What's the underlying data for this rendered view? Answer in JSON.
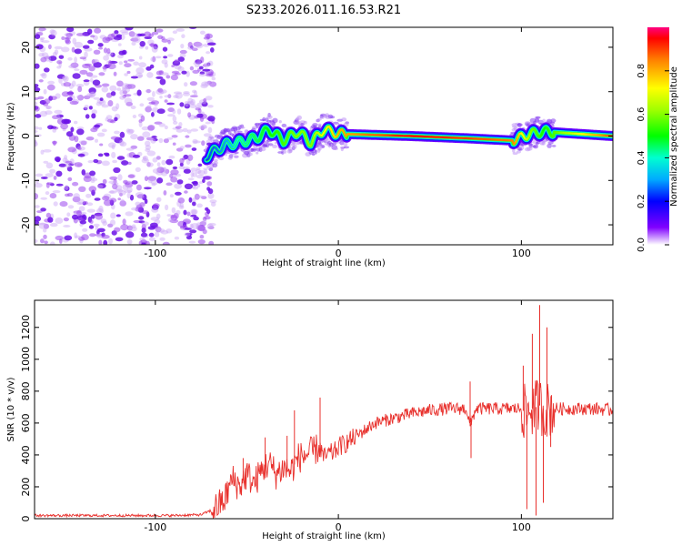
{
  "title": "S233.2026.011.16.53.R21",
  "chart_data": [
    {
      "type": "heatmap",
      "xlabel": "Height of straight line (km)",
      "ylabel": "Frequency (Hz)",
      "xlim": [
        -166,
        150
      ],
      "ylim": [
        -24.5,
        24.5
      ],
      "xticks": [
        -100,
        0,
        100
      ],
      "yticks": [
        -20,
        -10,
        0,
        10,
        20
      ],
      "colorbar": {
        "label": "Normalized spectral amplitude",
        "range": [
          0,
          1
        ],
        "ticks": [
          "0.0",
          "0.2",
          "0.4",
          "0.6",
          "0.8"
        ],
        "tick_values": [
          0.0,
          0.2,
          0.4,
          0.6,
          0.8
        ]
      },
      "noise_region_x": [
        -166,
        -72
      ],
      "line_segments": [
        {
          "x": -70,
          "y": -4,
          "amp": 0.25
        },
        {
          "x": -62,
          "y": -2,
          "amp": 0.3
        },
        {
          "x": -55,
          "y": -1.5,
          "amp": 0.4
        },
        {
          "x": -45,
          "y": -0.5,
          "amp": 0.45
        },
        {
          "x": -38,
          "y": 1.5,
          "amp": 0.5
        },
        {
          "x": -30,
          "y": -1,
          "amp": 0.55
        },
        {
          "x": -22,
          "y": 1,
          "amp": 0.6
        },
        {
          "x": -15,
          "y": -1.5,
          "amp": 0.6
        },
        {
          "x": -8,
          "y": 1.5,
          "amp": 0.7
        },
        {
          "x": 0,
          "y": 0.5,
          "amp": 0.8
        },
        {
          "x": 40,
          "y": 0,
          "amp": 0.95
        },
        {
          "x": 70,
          "y": -0.5,
          "amp": 0.9
        },
        {
          "x": 95,
          "y": -1,
          "amp": 0.85
        },
        {
          "x": 105,
          "y": 0.5,
          "amp": 0.6
        },
        {
          "x": 112,
          "y": 1,
          "amp": 0.5
        },
        {
          "x": 150,
          "y": 0,
          "amp": 0.9
        }
      ]
    },
    {
      "type": "line",
      "xlabel": "Height of straight line (km)",
      "ylabel": "SNR (10 * v/v)",
      "xlim": [
        -166,
        150
      ],
      "ylim": [
        0,
        1370
      ],
      "xticks": [
        -100,
        0,
        100
      ],
      "yticks": [
        0,
        200,
        400,
        600,
        800,
        1000,
        1200
      ],
      "color": "#e8302c",
      "series": {
        "x": [
          -166,
          -150,
          -130,
          -110,
          -90,
          -75,
          -68,
          -62,
          -58,
          -54,
          -50,
          -46,
          -42,
          -38,
          -34,
          -30,
          -26,
          -22,
          -18,
          -14,
          -10,
          -8,
          -6,
          -2,
          0,
          5,
          10,
          15,
          20,
          30,
          40,
          50,
          60,
          70,
          72,
          75,
          80,
          90,
          100,
          103,
          105,
          107,
          109,
          111,
          113,
          116,
          120,
          130,
          140,
          150
        ],
        "y": [
          20,
          20,
          20,
          20,
          20,
          25,
          60,
          120,
          250,
          200,
          280,
          220,
          300,
          350,
          280,
          320,
          300,
          380,
          400,
          420,
          450,
          380,
          400,
          420,
          450,
          480,
          520,
          560,
          600,
          630,
          660,
          680,
          690,
          690,
          580,
          690,
          690,
          690,
          690,
          650,
          700,
          680,
          720,
          700,
          680,
          690,
          690,
          690,
          690,
          680
        ]
      },
      "spikes": [
        {
          "x": -52,
          "y": 380
        },
        {
          "x": -40,
          "y": 510
        },
        {
          "x": -28,
          "y": 520
        },
        {
          "x": -24,
          "y": 680
        },
        {
          "x": -10,
          "y": 760
        },
        {
          "x": 72,
          "y": 860
        },
        {
          "x": 72.5,
          "y": 380
        },
        {
          "x": 101,
          "y": 960
        },
        {
          "x": 103,
          "y": 60
        },
        {
          "x": 106,
          "y": 1160
        },
        {
          "x": 108,
          "y": 20
        },
        {
          "x": 110,
          "y": 1340
        },
        {
          "x": 112,
          "y": 100
        },
        {
          "x": 114,
          "y": 1200
        },
        {
          "x": 116,
          "y": 450
        }
      ]
    }
  ]
}
